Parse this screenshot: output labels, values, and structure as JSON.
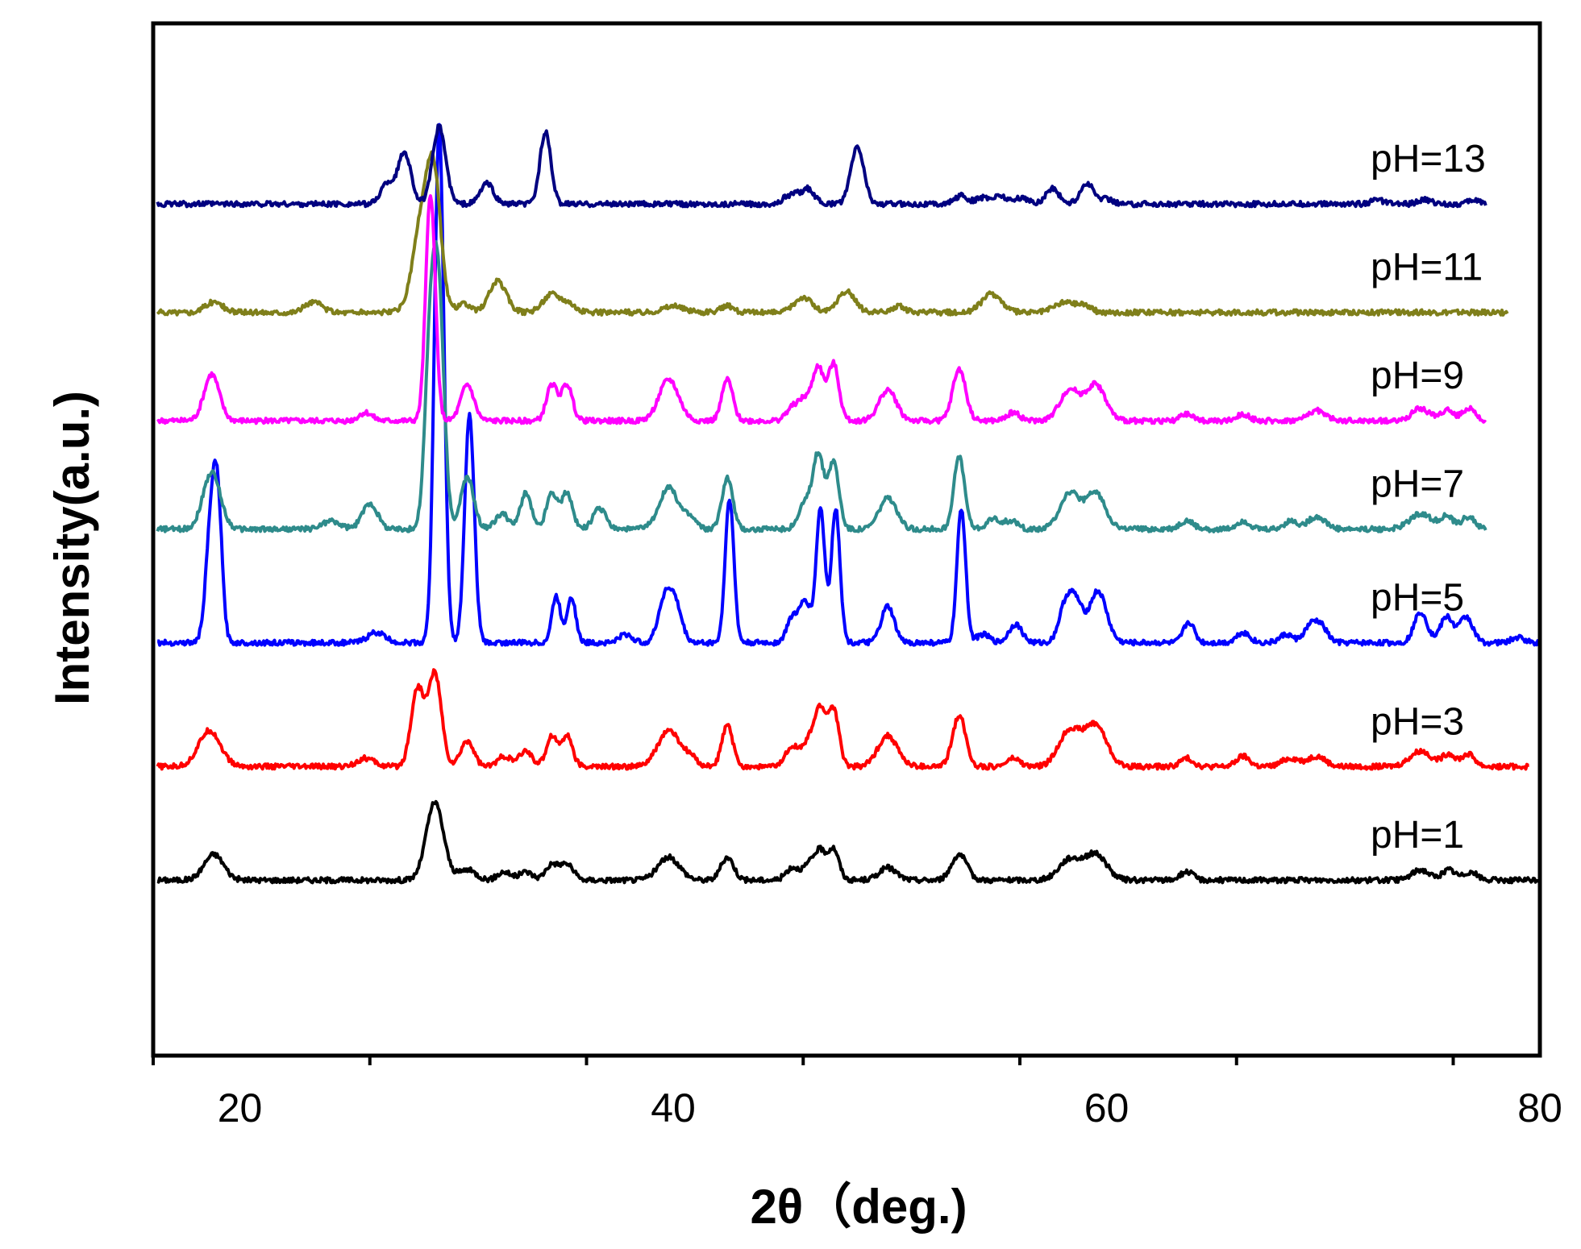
{
  "chart_data": {
    "type": "line",
    "title": "",
    "xlabel": "2θ（deg.)",
    "ylabel": "Intensity(a.u.)",
    "xlim": [
      16,
      80
    ],
    "x_ticks": [
      20,
      40,
      60,
      80
    ],
    "x_tick_labels": [
      "20",
      "40",
      "60",
      "80"
    ],
    "y_ticks_shown": false,
    "grid": false,
    "legend": "none (curves labeled inline at right)",
    "offset_units": "stacked intensity, arbitrary units; y range 0-100",
    "series": [
      {
        "name": "pH=1",
        "label": "pH=1",
        "color": "#000000",
        "baseline": 17,
        "x_end": 80,
        "peaks": [
          [
            18.8,
            2.5,
            0.45
          ],
          [
            29.0,
            7.5,
            0.4
          ],
          [
            30.5,
            1,
            0.4
          ],
          [
            32.2,
            0.8,
            0.3
          ],
          [
            33.2,
            0.8,
            0.3
          ],
          [
            34.4,
            1.5,
            0.3
          ],
          [
            35.1,
            1.5,
            0.3
          ],
          [
            39.8,
            2.2,
            0.5
          ],
          [
            42.5,
            2.2,
            0.3
          ],
          [
            45.5,
            1.2,
            0.3
          ],
          [
            46.3,
            1.5,
            0.3
          ],
          [
            46.8,
            2.5,
            0.25
          ],
          [
            47.4,
            3,
            0.25
          ],
          [
            49.9,
            1.2,
            0.4
          ],
          [
            53.2,
            2.5,
            0.35
          ],
          [
            58.3,
            2,
            0.5
          ],
          [
            59.5,
            2.5,
            0.5
          ],
          [
            63.7,
            0.8,
            0.3
          ],
          [
            74.5,
            1,
            0.4
          ],
          [
            75.8,
            1,
            0.3
          ],
          [
            76.8,
            0.8,
            0.3
          ]
        ]
      },
      {
        "name": "pH=3",
        "label": "pH=3",
        "color": "#ff0000",
        "baseline": 28,
        "x_end": 79.5,
        "peaks": [
          [
            18.6,
            3.5,
            0.5
          ],
          [
            25.8,
            0.8,
            0.4
          ],
          [
            28.2,
            7.5,
            0.3
          ],
          [
            29.0,
            9,
            0.3
          ],
          [
            30.5,
            2.5,
            0.3
          ],
          [
            32.2,
            1,
            0.3
          ],
          [
            33.2,
            1.5,
            0.3
          ],
          [
            34.4,
            3,
            0.25
          ],
          [
            35.1,
            3,
            0.25
          ],
          [
            39.8,
            3.5,
            0.5
          ],
          [
            40.8,
            0.8,
            0.3
          ],
          [
            42.5,
            4,
            0.25
          ],
          [
            45.5,
            2,
            0.3
          ],
          [
            46.3,
            2.5,
            0.3
          ],
          [
            46.8,
            5,
            0.25
          ],
          [
            47.4,
            5.5,
            0.25
          ],
          [
            49.9,
            3,
            0.45
          ],
          [
            53.2,
            5,
            0.3
          ],
          [
            55.7,
            0.8,
            0.3
          ],
          [
            58.3,
            3.5,
            0.5
          ],
          [
            59.5,
            4,
            0.5
          ],
          [
            63.7,
            0.8,
            0.3
          ],
          [
            66.3,
            1,
            0.3
          ],
          [
            68.5,
            0.8,
            0.4
          ],
          [
            69.7,
            1,
            0.4
          ],
          [
            74.5,
            1.5,
            0.5
          ],
          [
            75.8,
            1.2,
            0.3
          ],
          [
            76.7,
            1.2,
            0.3
          ]
        ]
      },
      {
        "name": "pH=5",
        "label": "pH=5",
        "color": "#0000ff",
        "baseline": 40,
        "x_end": 80,
        "peaks": [
          [
            18.7,
            12,
            0.25
          ],
          [
            19.0,
            10,
            0.2
          ],
          [
            26.3,
            1,
            0.4
          ],
          [
            29.2,
            50,
            0.22
          ],
          [
            30.6,
            22,
            0.22
          ],
          [
            34.6,
            4.5,
            0.2
          ],
          [
            35.3,
            4.5,
            0.2
          ],
          [
            37.8,
            0.8,
            0.3
          ],
          [
            39.6,
            4,
            0.3
          ],
          [
            40.1,
            3.5,
            0.3
          ],
          [
            42.6,
            14,
            0.2
          ],
          [
            45.5,
            2.5,
            0.25
          ],
          [
            46.1,
            4,
            0.25
          ],
          [
            46.8,
            13,
            0.2
          ],
          [
            47.5,
            13,
            0.2
          ],
          [
            49.9,
            3.5,
            0.3
          ],
          [
            53.3,
            13,
            0.2
          ],
          [
            54.3,
            0.8,
            0.3
          ],
          [
            55.8,
            1.8,
            0.3
          ],
          [
            58.1,
            3.5,
            0.3
          ],
          [
            58.6,
            3.5,
            0.3
          ],
          [
            59.6,
            5,
            0.4
          ],
          [
            63.8,
            2,
            0.25
          ],
          [
            66.3,
            1,
            0.3
          ],
          [
            68.3,
            0.8,
            0.3
          ],
          [
            69.4,
            1.5,
            0.3
          ],
          [
            69.9,
            1.5,
            0.3
          ],
          [
            74.5,
            3,
            0.3
          ],
          [
            75.7,
            2.5,
            0.3
          ],
          [
            76.6,
            2.5,
            0.3
          ],
          [
            79.0,
            0.5,
            0.3
          ]
        ]
      },
      {
        "name": "pH=7",
        "label": "pH=7",
        "color": "#2e8b8b",
        "baseline": 51,
        "x_end": 77.5,
        "peaks": [
          [
            18.7,
            5.5,
            0.4
          ],
          [
            24.2,
            0.8,
            0.4
          ],
          [
            26.0,
            2.5,
            0.35
          ],
          [
            28.8,
            18,
            0.25
          ],
          [
            29.2,
            20,
            0.25
          ],
          [
            30.5,
            5,
            0.3
          ],
          [
            32.1,
            1.5,
            0.3
          ],
          [
            33.2,
            3.5,
            0.25
          ],
          [
            34.4,
            3.5,
            0.25
          ],
          [
            35.1,
            3.5,
            0.25
          ],
          [
            36.6,
            2,
            0.3
          ],
          [
            39.8,
            4,
            0.45
          ],
          [
            40.8,
            1,
            0.3
          ],
          [
            42.5,
            5,
            0.25
          ],
          [
            46.1,
            2.5,
            0.3
          ],
          [
            46.7,
            7,
            0.25
          ],
          [
            47.4,
            6.5,
            0.25
          ],
          [
            49.9,
            3,
            0.4
          ],
          [
            53.2,
            7,
            0.25
          ],
          [
            54.8,
            1,
            0.3
          ],
          [
            55.6,
            0.8,
            0.3
          ],
          [
            58.3,
            3.5,
            0.45
          ],
          [
            59.5,
            3.5,
            0.45
          ],
          [
            63.7,
            0.8,
            0.3
          ],
          [
            66.3,
            0.8,
            0.3
          ],
          [
            68.5,
            0.8,
            0.3
          ],
          [
            69.7,
            1.2,
            0.4
          ],
          [
            74.5,
            1.5,
            0.5
          ],
          [
            75.7,
            1.2,
            0.3
          ],
          [
            76.7,
            1.2,
            0.3
          ]
        ]
      },
      {
        "name": "pH=9",
        "label": "pH=9",
        "color": "#ff00ff",
        "baseline": 61.5,
        "x_end": 77.5,
        "peaks": [
          [
            18.7,
            4.5,
            0.35
          ],
          [
            25.8,
            0.8,
            0.3
          ],
          [
            28.8,
            22,
            0.22
          ],
          [
            30.5,
            3.5,
            0.3
          ],
          [
            34.4,
            3.5,
            0.25
          ],
          [
            35.1,
            3.5,
            0.25
          ],
          [
            39.8,
            4,
            0.45
          ],
          [
            42.5,
            4,
            0.25
          ],
          [
            45.5,
            1.2,
            0.3
          ],
          [
            46.1,
            2,
            0.3
          ],
          [
            46.7,
            5,
            0.25
          ],
          [
            47.4,
            5.5,
            0.25
          ],
          [
            49.9,
            3,
            0.4
          ],
          [
            53.2,
            5,
            0.3
          ],
          [
            55.7,
            0.8,
            0.3
          ],
          [
            58.3,
            3,
            0.45
          ],
          [
            59.5,
            3.5,
            0.45
          ],
          [
            63.7,
            0.6,
            0.3
          ],
          [
            66.3,
            0.6,
            0.3
          ],
          [
            69.7,
            1,
            0.4
          ],
          [
            74.5,
            1.2,
            0.4
          ],
          [
            75.7,
            1,
            0.3
          ],
          [
            76.7,
            1.2,
            0.3
          ]
        ]
      },
      {
        "name": "pH=11",
        "label": "pH=11",
        "color": "#7f7f1a",
        "baseline": 72,
        "x_end": 78.5,
        "peaks": [
          [
            18.8,
            1,
            0.4
          ],
          [
            23.4,
            1,
            0.4
          ],
          [
            28.5,
            10,
            0.45
          ],
          [
            29.0,
            9,
            0.3
          ],
          [
            30.3,
            0.8,
            0.3
          ],
          [
            31.9,
            3,
            0.4
          ],
          [
            34.4,
            1.8,
            0.4
          ],
          [
            35.2,
            0.8,
            0.3
          ],
          [
            40.0,
            0.6,
            0.5
          ],
          [
            42.5,
            0.6,
            0.3
          ],
          [
            46.0,
            1.5,
            0.4
          ],
          [
            48.0,
            2,
            0.4
          ],
          [
            50.4,
            0.6,
            0.3
          ],
          [
            54.7,
            1.8,
            0.45
          ],
          [
            58.1,
            1,
            0.5
          ],
          [
            59.0,
            0.6,
            0.3
          ]
        ]
      },
      {
        "name": "pH=13",
        "label": "pH=13",
        "color": "#000080",
        "baseline": 82.5,
        "x_end": 77.5,
        "peaks": [
          [
            26.8,
            2,
            0.3
          ],
          [
            27.6,
            5,
            0.3
          ],
          [
            29.2,
            7.5,
            0.3
          ],
          [
            31.4,
            2,
            0.3
          ],
          [
            34.1,
            7,
            0.25
          ],
          [
            45.2,
            0.6,
            0.2
          ],
          [
            45.6,
            0.8,
            0.2
          ],
          [
            46.2,
            1.5,
            0.3
          ],
          [
            48.5,
            5.5,
            0.3
          ],
          [
            53.3,
            0.8,
            0.3
          ],
          [
            54.3,
            0.6,
            0.3
          ],
          [
            55.1,
            0.8,
            0.3
          ],
          [
            56.1,
            0.6,
            0.3
          ],
          [
            57.5,
            1.5,
            0.3
          ],
          [
            59.1,
            2,
            0.3
          ],
          [
            60.0,
            0.5,
            0.3
          ],
          [
            72.5,
            0.4,
            0.3
          ],
          [
            74.7,
            0.4,
            0.3
          ],
          [
            77.0,
            0.4,
            0.3
          ]
        ]
      }
    ]
  }
}
